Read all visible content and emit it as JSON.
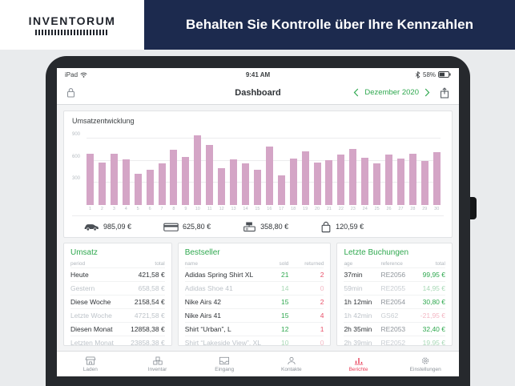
{
  "colors": {
    "navy_banner": "#1c2a4e",
    "accent_green": "#2fa84f",
    "accent_red": "#e8506a",
    "bar_pink": "#d4a5c6",
    "tab_active": "#e8405a"
  },
  "banner": {
    "logo": "INVENTORUM",
    "headline": "Behalten Sie Kontrolle über Ihre Kennzahlen"
  },
  "statusbar": {
    "device": "iPad",
    "time": "9:41 AM",
    "battery": "58%"
  },
  "navbar": {
    "title": "Dashboard",
    "period": "Dezember 2020"
  },
  "chart_data": {
    "type": "bar",
    "title": "Umsatzentwicklung",
    "x": [
      1,
      2,
      3,
      4,
      5,
      6,
      7,
      8,
      9,
      10,
      11,
      12,
      13,
      14,
      15,
      16,
      17,
      18,
      19,
      20,
      21,
      22,
      23,
      24,
      25,
      26,
      27,
      28,
      29,
      30
    ],
    "values": [
      700,
      580,
      700,
      620,
      420,
      480,
      570,
      750,
      650,
      950,
      810,
      500,
      620,
      560,
      480,
      790,
      400,
      630,
      730,
      580,
      610,
      690,
      760,
      640,
      570,
      680,
      630,
      700,
      600,
      720
    ],
    "xlabel": "",
    "ylabel": "",
    "ylim": [
      0,
      1000
    ],
    "yticks": [
      300,
      600,
      900
    ],
    "bar_color": "#d4a5c6",
    "grid": true,
    "legend": "none"
  },
  "summary": [
    {
      "icon": "car-icon",
      "value": "985,09 €"
    },
    {
      "icon": "credit-card-icon",
      "value": "625,80 €"
    },
    {
      "icon": "cash-register-icon",
      "value": "358,80 €"
    },
    {
      "icon": "shopping-bag-icon",
      "value": "120,59 €"
    }
  ],
  "tables": {
    "umsatz": {
      "title": "Umsatz",
      "columns": [
        "period",
        "total"
      ],
      "rows": [
        {
          "period": "Heute",
          "total": "421,58 €",
          "muted": false
        },
        {
          "period": "Gestern",
          "total": "658,58 €",
          "muted": true
        },
        {
          "period": "Diese Woche",
          "total": "2158,54 €",
          "muted": false
        },
        {
          "period": "Letzte Woche",
          "total": "4721,58 €",
          "muted": true
        },
        {
          "period": "Diesen Monat",
          "total": "12858,38 €",
          "muted": false
        },
        {
          "period": "Letzten Monat",
          "total": "23858,38 €",
          "muted": true
        }
      ]
    },
    "bestseller": {
      "title": "Bestseller",
      "columns": [
        "name",
        "sold",
        "returned"
      ],
      "rows": [
        {
          "name": "Adidas Spring Shirt XL",
          "sold": 21,
          "returned": 2,
          "muted": false
        },
        {
          "name": "Adidas Shoe 41",
          "sold": 14,
          "returned": 0,
          "muted": true
        },
        {
          "name": "Nike Airs 42",
          "sold": 15,
          "returned": 2,
          "muted": false
        },
        {
          "name": "Nike Airs 41",
          "sold": 15,
          "returned": 4,
          "muted": false
        },
        {
          "name": "Shirt “Urban”, L",
          "sold": 12,
          "returned": 1,
          "muted": false
        },
        {
          "name": "Shirt “Lakeside View”, XL",
          "sold": 10,
          "returned": 0,
          "muted": true
        }
      ]
    },
    "buchungen": {
      "title": "Letzte Buchungen",
      "columns": [
        "age",
        "reference",
        "total"
      ],
      "rows": [
        {
          "age": "37min",
          "reference": "RE2056",
          "total": "99,95 €",
          "negative": false,
          "muted": false
        },
        {
          "age": "59min",
          "reference": "RE2055",
          "total": "14,95 €",
          "negative": false,
          "muted": true
        },
        {
          "age": "1h 12min",
          "reference": "RE2054",
          "total": "30,80 €",
          "negative": false,
          "muted": false
        },
        {
          "age": "1h 42min",
          "reference": "GS62",
          "total": "-21,95 €",
          "negative": true,
          "muted": true
        },
        {
          "age": "2h 35min",
          "reference": "RE2053",
          "total": "32,40 €",
          "negative": false,
          "muted": false
        },
        {
          "age": "2h 39min",
          "reference": "RE2052",
          "total": "19,95 €",
          "negative": false,
          "muted": true
        }
      ]
    }
  },
  "tabbar": {
    "items": [
      {
        "label": "Laden",
        "icon": "shop-icon",
        "active": false
      },
      {
        "label": "Inventar",
        "icon": "inventory-icon",
        "active": false
      },
      {
        "label": "Eingang",
        "icon": "inbox-icon",
        "active": false
      },
      {
        "label": "Kontakte",
        "icon": "contacts-icon",
        "active": false
      },
      {
        "label": "Berichte",
        "icon": "reports-icon",
        "active": true
      },
      {
        "label": "Einstellungen",
        "icon": "settings-icon",
        "active": false
      }
    ]
  }
}
